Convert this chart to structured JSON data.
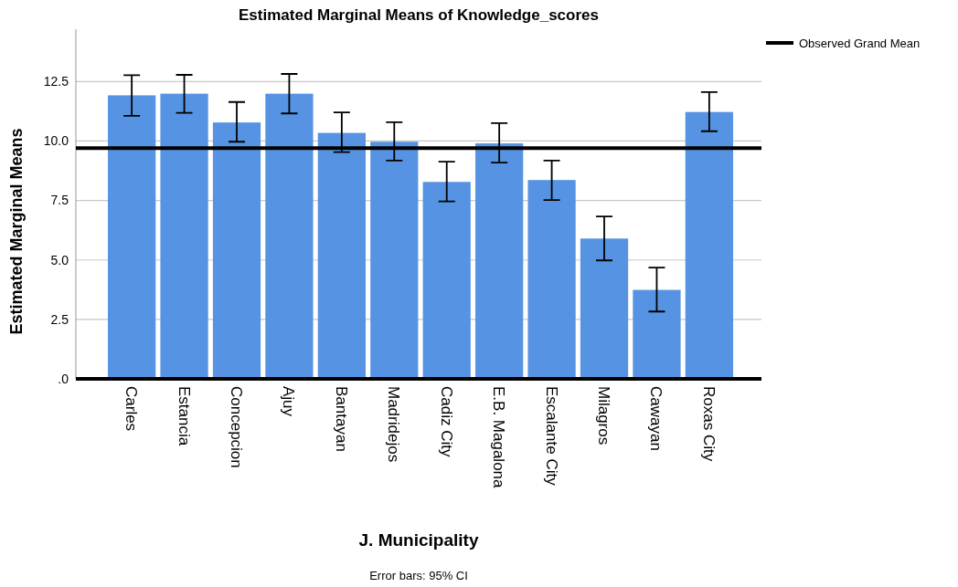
{
  "chart_data": {
    "type": "bar",
    "title": "Estimated Marginal Means of Knowledge_scores",
    "xlabel": "J. Municipality",
    "ylabel": "Estimated Marginal Means",
    "categories": [
      "Carles",
      "Estancia",
      "Concepcion",
      "Ajuy",
      "Bantayan",
      "Madridejos",
      "Cadiz City",
      "E.B. Magalona",
      "Escalante City",
      "Milagros",
      "Cawayan",
      "Roxas City"
    ],
    "values": [
      11.92,
      11.99,
      10.78,
      11.99,
      10.34,
      9.97,
      8.28,
      9.9,
      8.36,
      5.9,
      3.74,
      11.22
    ],
    "errors": [
      [
        11.06,
        12.77
      ],
      [
        11.18,
        12.78
      ],
      [
        9.97,
        11.64
      ],
      [
        11.16,
        12.82
      ],
      [
        9.53,
        11.2
      ],
      [
        9.18,
        10.79
      ],
      [
        7.46,
        9.13
      ],
      [
        9.09,
        10.75
      ],
      [
        7.52,
        9.18
      ],
      [
        4.98,
        6.83
      ],
      [
        2.83,
        4.68
      ],
      [
        10.41,
        12.06
      ]
    ],
    "color": "#5694e3",
    "ylim": [
      0,
      14.7
    ],
    "yticks": [
      {
        "value": 0,
        "label": ".0"
      },
      {
        "value": 2.5,
        "label": "2.5"
      },
      {
        "value": 5,
        "label": "5.0"
      },
      {
        "value": 7.5,
        "label": "7.5"
      },
      {
        "value": 10,
        "label": "10.0"
      },
      {
        "value": 12.5,
        "label": "12.5"
      }
    ],
    "grid": "y",
    "legend": "top right",
    "ref_lines": [
      {
        "axis": "y",
        "value": 9.7,
        "label": "Observed Grand Mean",
        "color": "#000000"
      }
    ],
    "annotations": [
      "Error bars: 95% CI"
    ]
  }
}
